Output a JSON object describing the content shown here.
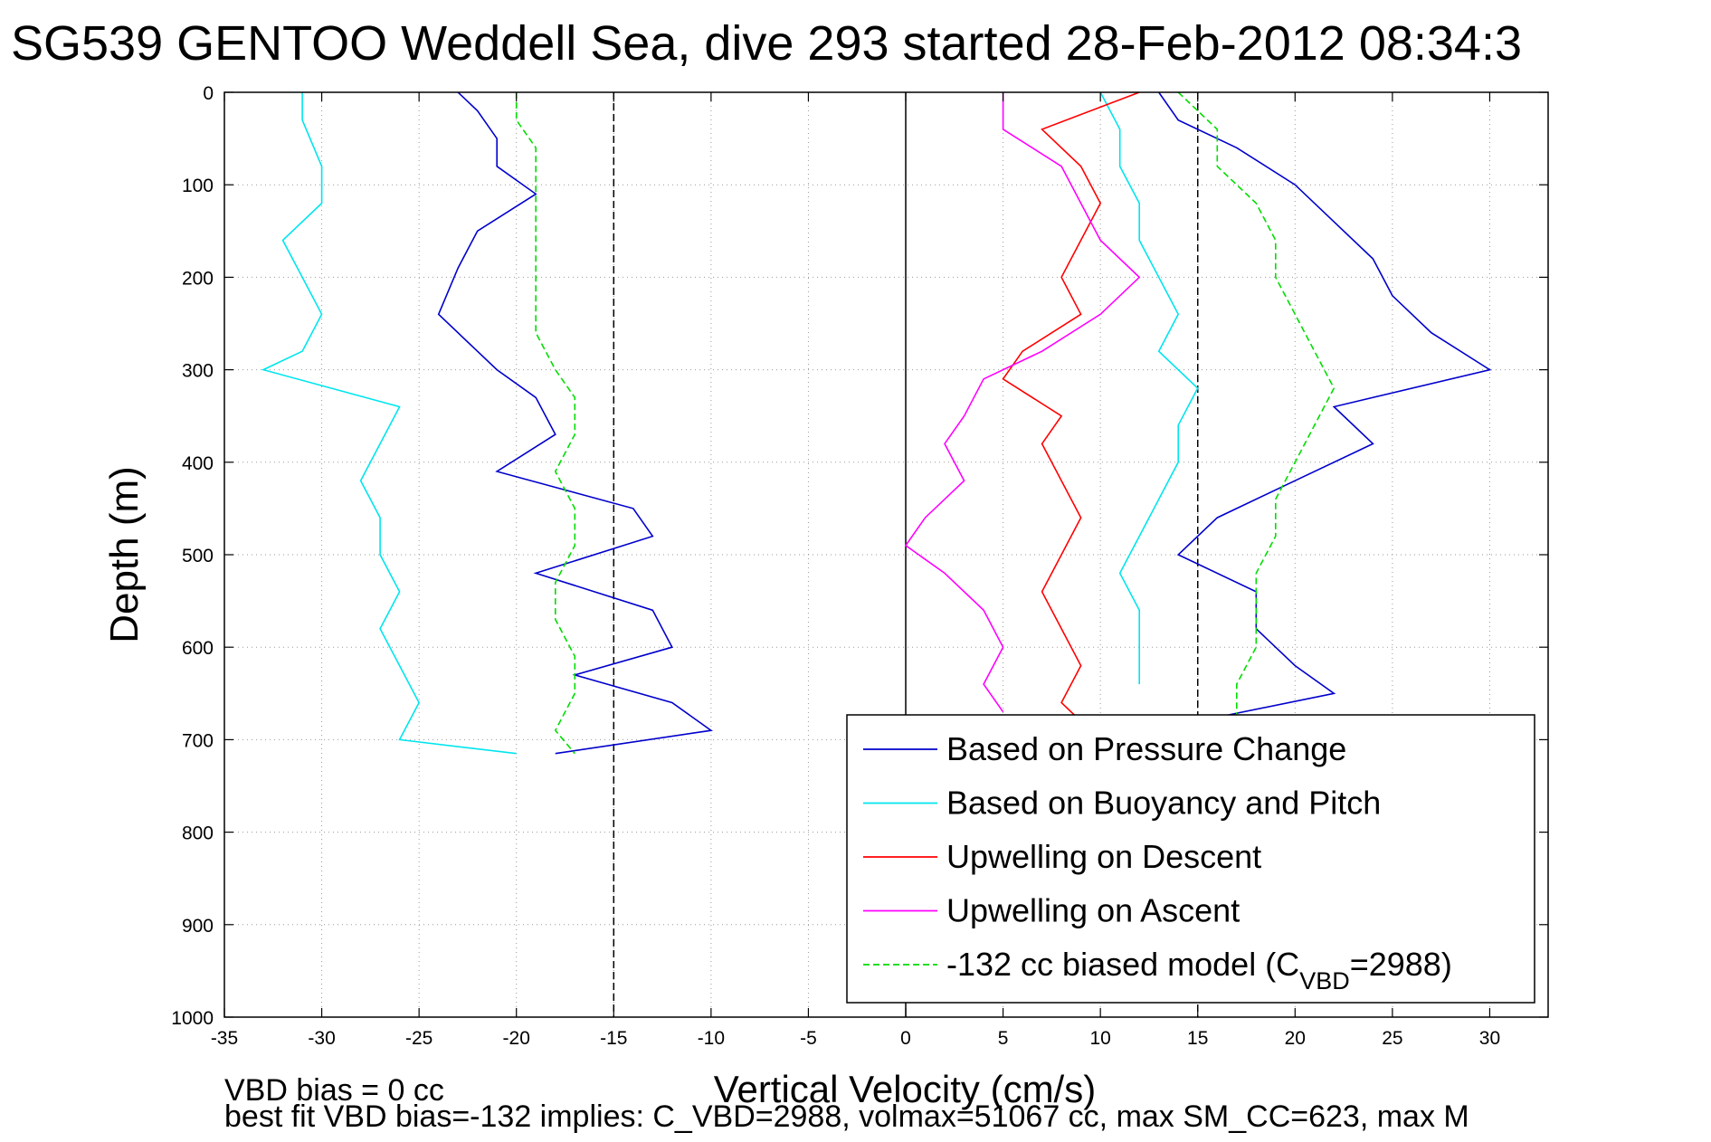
{
  "chart_data": {
    "type": "line",
    "title": "SG539 GENTOO Weddell Sea, dive 293 started 28-Feb-2012 08:34:3",
    "xlabel": "Vertical Velocity (cm/s)",
    "ylabel": "Depth (m)",
    "xlim": [
      -35,
      33
    ],
    "ylim": [
      0,
      1000
    ],
    "y_reversed": true,
    "grid": true,
    "x_ticks": [
      -35,
      -30,
      -25,
      -20,
      -15,
      -10,
      -5,
      0,
      5,
      10,
      15,
      20,
      25,
      30
    ],
    "y_ticks": [
      0,
      100,
      200,
      300,
      400,
      500,
      600,
      700,
      800,
      900,
      1000
    ],
    "vertical_lines": [
      {
        "x": 0,
        "style": "solid"
      },
      {
        "x": -15,
        "style": "dashed"
      },
      {
        "x": 15,
        "style": "dashed"
      }
    ],
    "legend_position": "bottom-right",
    "series": [
      {
        "name": "Based on Pressure Change",
        "color": "#0000cc",
        "style": "solid",
        "depth": [
          0,
          20,
          50,
          80,
          110,
          150,
          190,
          240,
          280,
          300,
          330,
          370,
          410,
          450,
          480,
          520,
          560,
          600,
          630,
          660,
          690,
          715
        ],
        "velocity": [
          -23,
          -22,
          -21,
          -21,
          -19,
          -22,
          -23,
          -24,
          -22,
          -21,
          -19,
          -18,
          -21,
          -14,
          -13,
          -19,
          -13,
          -12,
          -17,
          -12,
          -10,
          -18
        ]
      },
      {
        "name": "Based on Pressure Change",
        "color": "#0000cc",
        "style": "solid",
        "depth": [
          0,
          30,
          60,
          100,
          140,
          180,
          220,
          260,
          300,
          340,
          380,
          420,
          460,
          500,
          540,
          580,
          620,
          650,
          680
        ],
        "velocity": [
          13,
          14,
          17,
          20,
          22,
          24,
          25,
          27,
          30,
          22,
          24,
          20,
          16,
          14,
          18,
          18,
          20,
          22,
          15
        ]
      },
      {
        "name": "Based on Buoyancy and Pitch",
        "color": "#00e5ee",
        "style": "solid",
        "depth": [
          0,
          30,
          80,
          120,
          160,
          200,
          240,
          280,
          300,
          340,
          380,
          420,
          460,
          500,
          540,
          580,
          620,
          660,
          700,
          715
        ],
        "velocity": [
          -31,
          -31,
          -30,
          -30,
          -32,
          -31,
          -30,
          -31,
          -33,
          -26,
          -27,
          -28,
          -27,
          -27,
          -26,
          -27,
          -26,
          -25,
          -26,
          -20
        ]
      },
      {
        "name": "Based on Buoyancy and Pitch",
        "color": "#00e5ee",
        "style": "solid",
        "depth": [
          0,
          40,
          80,
          120,
          160,
          200,
          240,
          280,
          320,
          360,
          400,
          440,
          480,
          520,
          560,
          600,
          640
        ],
        "velocity": [
          10,
          11,
          11,
          12,
          12,
          13,
          14,
          13,
          15,
          14,
          14,
          13,
          12,
          11,
          12,
          12,
          12
        ]
      },
      {
        "name": "Upwelling on Descent",
        "color": "#ff0000",
        "style": "solid",
        "depth": [
          0,
          40,
          80,
          120,
          160,
          200,
          240,
          280,
          310,
          350,
          380,
          420,
          460,
          500,
          540,
          580,
          620,
          660,
          680
        ],
        "velocity": [
          12,
          7,
          9,
          10,
          9,
          8,
          9,
          6,
          5,
          8,
          7,
          8,
          9,
          8,
          7,
          8,
          9,
          8,
          9
        ]
      },
      {
        "name": "Upwelling on Ascent",
        "color": "#ff00ff",
        "style": "solid",
        "depth": [
          0,
          40,
          80,
          120,
          160,
          200,
          240,
          280,
          310,
          350,
          380,
          420,
          460,
          490,
          520,
          560,
          600,
          640,
          670
        ],
        "velocity": [
          5,
          5,
          8,
          9,
          10,
          12,
          10,
          7,
          4,
          3,
          2,
          3,
          1,
          0,
          2,
          4,
          5,
          4,
          5
        ]
      },
      {
        "name": "-132 cc biased model (C_VBD=2988)",
        "color": "#00dd00",
        "style": "dashed",
        "depth": [
          0,
          30,
          60,
          100,
          140,
          180,
          220,
          260,
          300,
          330,
          370,
          410,
          450,
          490,
          530,
          570,
          610,
          650,
          690,
          715
        ],
        "velocity": [
          -20,
          -20,
          -19,
          -19,
          -19,
          -19,
          -19,
          -19,
          -18,
          -17,
          -17,
          -18,
          -17,
          -17,
          -18,
          -18,
          -17,
          -17,
          -18,
          -17
        ]
      },
      {
        "name": "-132 cc biased model (C_VBD=2988)",
        "color": "#00dd00",
        "style": "dashed",
        "depth": [
          0,
          40,
          80,
          120,
          160,
          200,
          240,
          280,
          320,
          360,
          400,
          440,
          480,
          520,
          560,
          600,
          640,
          680
        ],
        "velocity": [
          14,
          16,
          16,
          18,
          19,
          19,
          20,
          21,
          22,
          21,
          20,
          19,
          19,
          18,
          18,
          18,
          17,
          17
        ]
      }
    ],
    "legend": [
      {
        "label": "Based on Pressure Change",
        "color": "#0000cc",
        "style": "solid"
      },
      {
        "label": "Based on Buoyancy and Pitch",
        "color": "#00e5ee",
        "style": "solid"
      },
      {
        "label": "Upwelling on Descent",
        "color": "#ff0000",
        "style": "solid"
      },
      {
        "label": "Upwelling on Ascent",
        "color": "#ff00ff",
        "style": "solid"
      },
      {
        "label": "-132 cc biased model (C",
        "sub": "VBD",
        "suffix": "=2988)",
        "color": "#00dd00",
        "style": "dashed"
      }
    ],
    "annotations": {
      "line1": "VBD bias = 0 cc",
      "line2": "best fit VBD bias=-132 implies: C_VBD=2988, volmax=51067 cc, max SM_CC=623, max M"
    }
  }
}
